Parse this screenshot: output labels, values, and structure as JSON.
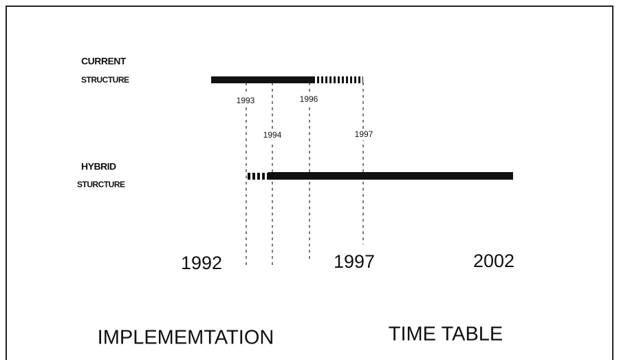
{
  "rows": [
    {
      "label": [
        "CURRENT",
        "STRUCTURE"
      ]
    },
    {
      "label": [
        "HYBRID",
        "STURCTURE"
      ]
    }
  ],
  "markers": [
    "1993",
    "1996",
    "1994",
    "1997"
  ],
  "axis": [
    "1992",
    "1997",
    "2002"
  ],
  "title": [
    "IMPLEMEMTATION",
    "TIME TABLE"
  ]
}
